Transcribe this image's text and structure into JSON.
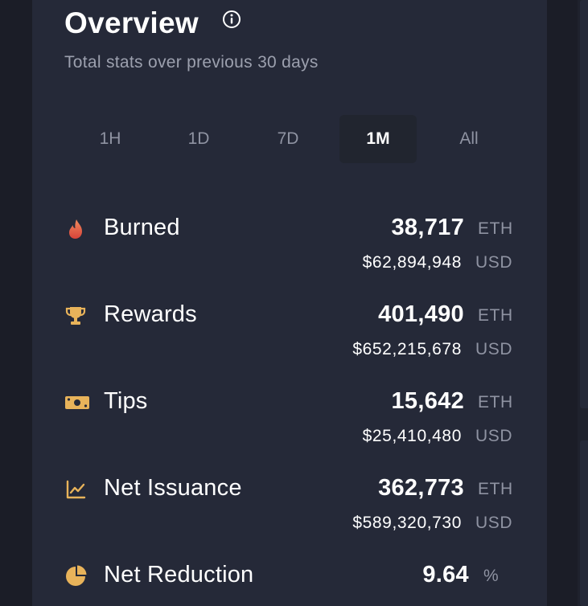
{
  "overview": {
    "title": "Overview",
    "subtitle": "Total stats over previous 30 days",
    "info_icon": "info-circle-icon"
  },
  "tabs": [
    {
      "label": "1H",
      "active": false
    },
    {
      "label": "1D",
      "active": false
    },
    {
      "label": "7D",
      "active": false
    },
    {
      "label": "1M",
      "active": true
    },
    {
      "label": "All",
      "active": false
    }
  ],
  "stats": {
    "burned": {
      "label": "Burned",
      "icon": "flame-icon",
      "value": "38,717",
      "unit": "ETH",
      "usd": "$62,894,948",
      "usd_unit": "USD"
    },
    "rewards": {
      "label": "Rewards",
      "icon": "trophy-icon",
      "value": "401,490",
      "unit": "ETH",
      "usd": "$652,215,678",
      "usd_unit": "USD"
    },
    "tips": {
      "label": "Tips",
      "icon": "banknote-icon",
      "value": "15,642",
      "unit": "ETH",
      "usd": "$25,410,480",
      "usd_unit": "USD"
    },
    "net_issuance": {
      "label": "Net Issuance",
      "icon": "line-chart-icon",
      "value": "362,773",
      "unit": "ETH",
      "usd": "$589,320,730",
      "usd_unit": "USD"
    },
    "net_reduction": {
      "label": "Net Reduction",
      "icon": "pie-chart-icon",
      "value": "9.64",
      "unit": "%"
    }
  },
  "colors": {
    "background": "#1b1d27",
    "card": "#252938",
    "accent_gold": "#e8b35a",
    "flame_red": "#e0533f",
    "muted_text": "#8f93a2"
  }
}
